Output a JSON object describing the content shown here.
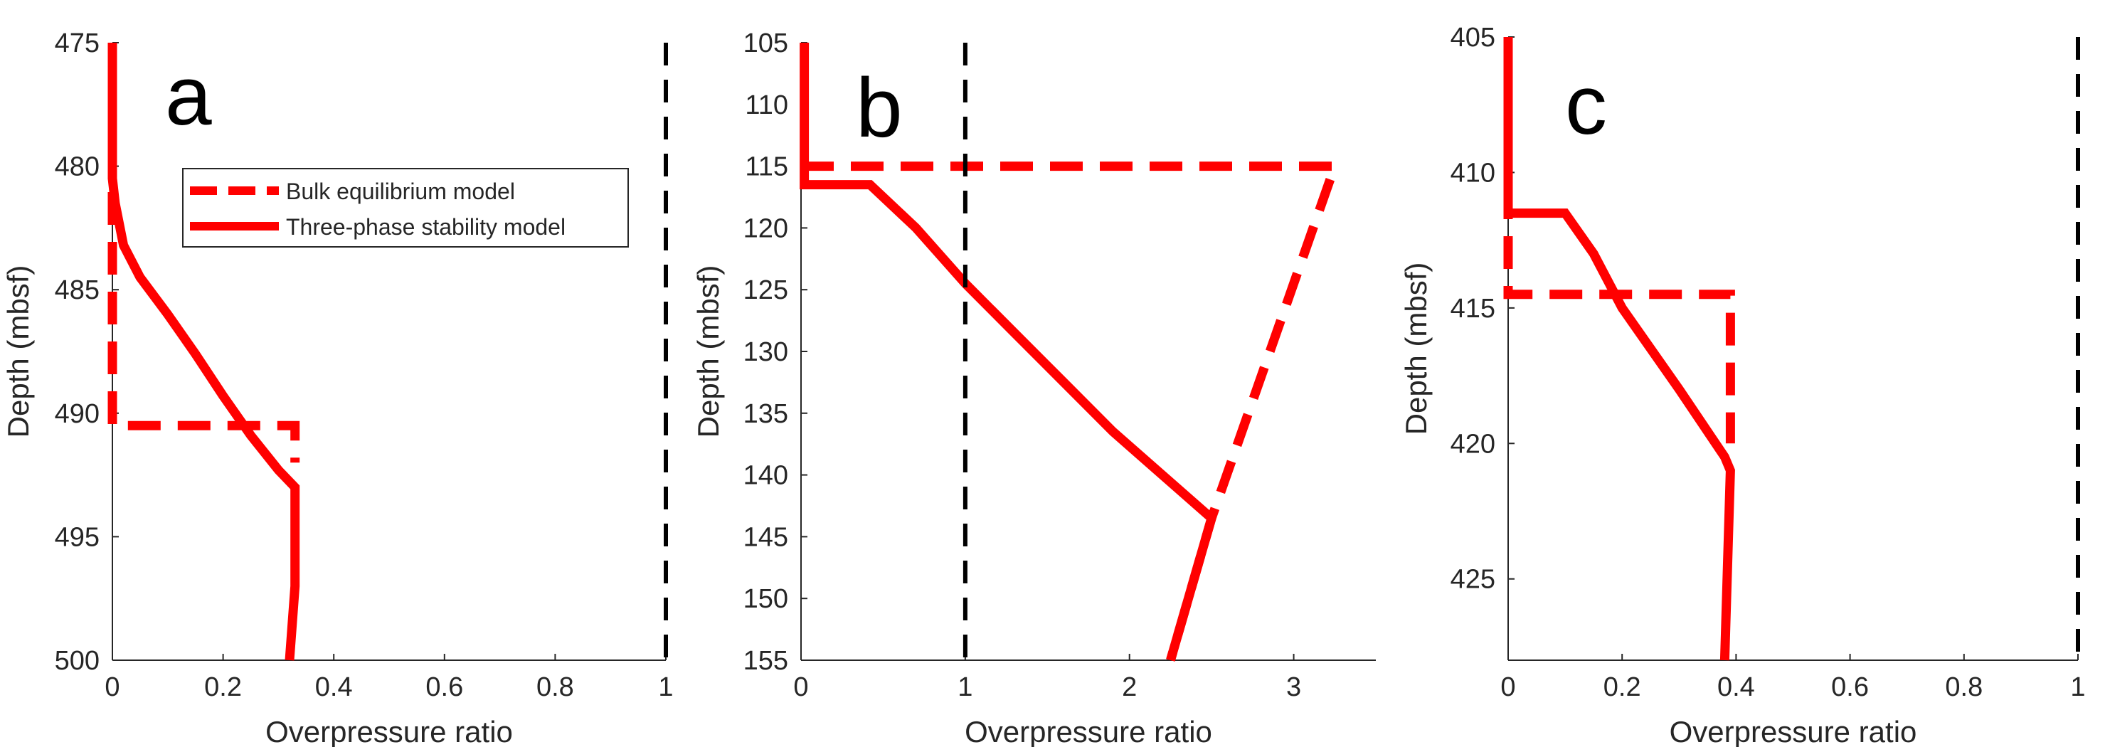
{
  "colors": {
    "model": "#ff0000",
    "reference": "#000000",
    "axis": "#262626"
  },
  "chart_data": [
    {
      "type": "line",
      "panel_label": "a",
      "xlabel": "Overpressure ratio",
      "ylabel": "Depth (mbsf)",
      "xlim": [
        0,
        1
      ],
      "ylim": [
        475,
        500
      ],
      "y_reversed": true,
      "xticks": [
        0,
        0.2,
        0.4,
        0.6,
        0.8,
        1
      ],
      "xtick_labels": [
        "0",
        "0.2",
        "0.4",
        "0.6",
        "0.8",
        "1"
      ],
      "yticks": [
        475,
        480,
        485,
        490,
        495,
        500
      ],
      "ytick_labels": [
        "475",
        "480",
        "485",
        "490",
        "495",
        "500"
      ],
      "legend": {
        "location": "upper-center",
        "entries": [
          "Bulk equilibrium model",
          "Three-phase stability model"
        ]
      },
      "series": [
        {
          "name": "Bulk equilibrium model",
          "style": "dashed",
          "color": "#ff0000",
          "x": [
            0,
            0,
            0.33,
            0.33
          ],
          "y": [
            475,
            490.5,
            490.5,
            492
          ]
        },
        {
          "name": "Three-phase stability model",
          "style": "solid",
          "color": "#ff0000",
          "x": [
            0,
            0,
            0.005,
            0.02,
            0.05,
            0.1,
            0.15,
            0.2,
            0.25,
            0.3,
            0.33,
            0.33,
            0.32
          ],
          "y": [
            475,
            480.5,
            481.5,
            483.2,
            484.5,
            486,
            487.6,
            489.3,
            490.9,
            492.3,
            493,
            497,
            500
          ]
        },
        {
          "name": "",
          "style": "dashed",
          "color": "#000000",
          "x": [
            1,
            1
          ],
          "y": [
            475,
            500
          ]
        }
      ]
    },
    {
      "type": "line",
      "panel_label": "b",
      "xlabel": "Overpressure ratio",
      "ylabel": "Depth (mbsf)",
      "xlim": [
        0,
        3.5
      ],
      "ylim": [
        105,
        155
      ],
      "y_reversed": true,
      "xticks": [
        0,
        1,
        2,
        3
      ],
      "xtick_labels": [
        "0",
        "1",
        "2",
        "3"
      ],
      "yticks": [
        105,
        110,
        115,
        120,
        125,
        130,
        135,
        140,
        145,
        150,
        155
      ],
      "ytick_labels": [
        "105",
        "110",
        "115",
        "120",
        "125",
        "130",
        "135",
        "140",
        "145",
        "150",
        "155"
      ],
      "series": [
        {
          "name": "",
          "style": "dashed",
          "color": "#ff0000",
          "x": [
            0,
            3.25,
            2.5,
            2.25
          ],
          "y": [
            115,
            115,
            143.5,
            155
          ]
        },
        {
          "name": "",
          "style": "solid",
          "color": "#ff0000",
          "x": [
            0.02,
            0.02,
            0.42,
            0.7,
            1.0,
            1.3,
            1.6,
            1.9,
            2.2,
            2.5,
            2.25
          ],
          "y": [
            105,
            116.5,
            116.5,
            120,
            124.5,
            128.5,
            132.5,
            136.5,
            140,
            143.5,
            155
          ]
        },
        {
          "name": "",
          "style": "dashed",
          "color": "#000000",
          "x": [
            1,
            1
          ],
          "y": [
            105,
            155
          ]
        }
      ]
    },
    {
      "type": "line",
      "panel_label": "c",
      "xlabel": "Overpressure ratio",
      "ylabel": "Depth (mbsf)",
      "xlim": [
        0,
        1
      ],
      "ylim": [
        405,
        428
      ],
      "y_reversed": true,
      "xticks": [
        0,
        0.2,
        0.4,
        0.6,
        0.8,
        1
      ],
      "xtick_labels": [
        "0",
        "0.2",
        "0.4",
        "0.6",
        "0.8",
        "1"
      ],
      "yticks": [
        405,
        410,
        415,
        420,
        425
      ],
      "ytick_labels": [
        "405",
        "410",
        "415",
        "420",
        "425"
      ],
      "series": [
        {
          "name": "",
          "style": "dashed",
          "color": "#ff0000",
          "x": [
            0,
            0,
            0.39,
            0.39
          ],
          "y": [
            405,
            414.5,
            414.5,
            420
          ]
        },
        {
          "name": "",
          "style": "solid",
          "color": "#ff0000",
          "x": [
            0,
            0,
            0.1,
            0.15,
            0.2,
            0.3,
            0.38,
            0.39,
            0.38
          ],
          "y": [
            405,
            411.5,
            411.5,
            413,
            415,
            418,
            420.5,
            421,
            428
          ]
        },
        {
          "name": "",
          "style": "dashed",
          "color": "#000000",
          "x": [
            1,
            1
          ],
          "y": [
            405,
            428
          ]
        }
      ]
    }
  ]
}
